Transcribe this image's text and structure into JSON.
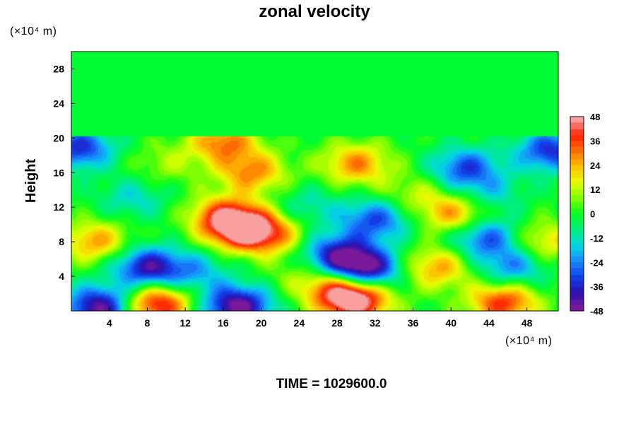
{
  "chart_data": {
    "type": "heatmap",
    "title": "zonal velocity",
    "xlabel": "",
    "ylabel": "Height",
    "x_unit": "(×10⁴ m)",
    "y_unit": "(×10⁴ m)",
    "xlim": [
      0,
      51.3
    ],
    "ylim": [
      0,
      30
    ],
    "x_ticks": [
      4,
      8,
      12,
      16,
      20,
      24,
      28,
      32,
      36,
      40,
      44,
      48
    ],
    "y_ticks": [
      4,
      8,
      12,
      16,
      20,
      24,
      28
    ],
    "x_tick_labels": [
      "4",
      "8",
      "12",
      "16",
      "20",
      "24",
      "28",
      "32",
      "36",
      "40",
      "44",
      "48"
    ],
    "y_tick_labels": [
      "4",
      "8",
      "12",
      "16",
      "20",
      "24",
      "28"
    ],
    "colorbar": {
      "min": -48,
      "max": 48,
      "ticks": [
        48,
        36,
        24,
        12,
        0,
        -12,
        -24,
        -36,
        -48
      ],
      "tick_labels": [
        "48",
        "36",
        "24",
        "12",
        "0",
        "-12",
        "-24",
        "-36",
        "-48"
      ],
      "colors": [
        "#7a1a9a",
        "#2a10b0",
        "#1040e8",
        "#1a8cff",
        "#00d8e0",
        "#00f080",
        "#00ff20",
        "#80ff00",
        "#e8ff00",
        "#ffc000",
        "#ff7000",
        "#ff2000",
        "#f8a0a0"
      ]
    },
    "above_field_value": -1,
    "features": [
      {
        "x": 18,
        "y": 9.5,
        "value": 46
      },
      {
        "x": 16,
        "y": 11,
        "value": 30
      },
      {
        "x": 21,
        "y": 8.8,
        "value": 24
      },
      {
        "x": 19,
        "y": 16,
        "value": 28
      },
      {
        "x": 16,
        "y": 19.5,
        "value": 30
      },
      {
        "x": 30,
        "y": 1.2,
        "value": 46
      },
      {
        "x": 28,
        "y": 2.5,
        "value": 28
      },
      {
        "x": 9,
        "y": 0.8,
        "value": 44
      },
      {
        "x": 45.5,
        "y": 1.0,
        "value": 38
      },
      {
        "x": 2.5,
        "y": 8,
        "value": 26
      },
      {
        "x": 30,
        "y": 17,
        "value": 28
      },
      {
        "x": 40.5,
        "y": 11.2,
        "value": 28
      },
      {
        "x": 38.5,
        "y": 5,
        "value": 26
      },
      {
        "x": 31,
        "y": 4.8,
        "value": -46
      },
      {
        "x": 28,
        "y": 6.5,
        "value": -36
      },
      {
        "x": 32,
        "y": 10.5,
        "value": -30
      },
      {
        "x": 8,
        "y": 5,
        "value": -40
      },
      {
        "x": 17.5,
        "y": 0.5,
        "value": -48
      },
      {
        "x": 3,
        "y": 0.4,
        "value": -46
      },
      {
        "x": 13,
        "y": 4.5,
        "value": -18
      },
      {
        "x": 0.8,
        "y": 18.8,
        "value": -34
      },
      {
        "x": 41.5,
        "y": 16.5,
        "value": -30
      },
      {
        "x": 50.5,
        "y": 18.5,
        "value": -34
      },
      {
        "x": 43.5,
        "y": 8.5,
        "value": -30
      },
      {
        "x": 46.5,
        "y": 5,
        "value": -24
      },
      {
        "x": 44,
        "y": 13.5,
        "value": -14
      },
      {
        "x": 6.5,
        "y": 13,
        "value": -14
      },
      {
        "x": 25,
        "y": 12,
        "value": -12
      },
      {
        "x": 50,
        "y": 8,
        "value": 20
      },
      {
        "x": 36,
        "y": 13.5,
        "value": 12
      },
      {
        "x": 10,
        "y": 17,
        "value": 10
      },
      {
        "x": 24,
        "y": 4,
        "value": 8
      }
    ]
  },
  "time_label": "TIME = 1029600.0"
}
